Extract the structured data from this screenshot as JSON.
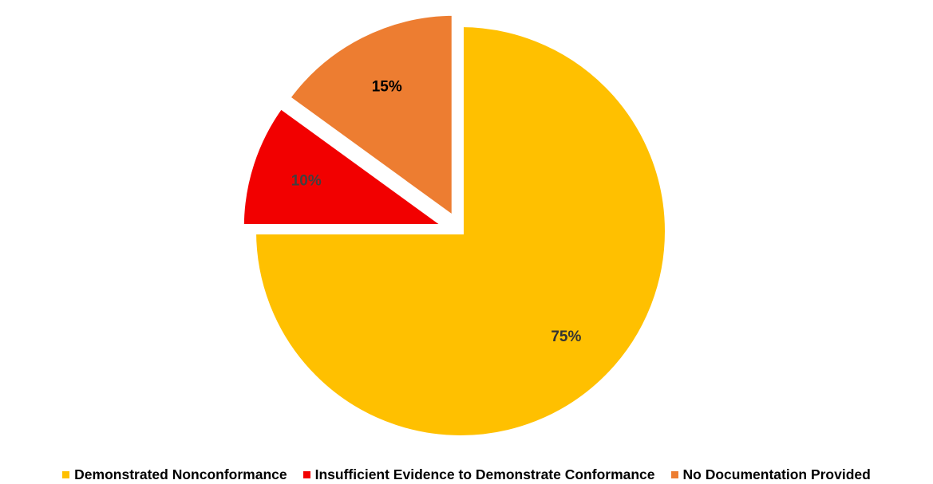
{
  "chart_data": {
    "type": "pie",
    "title": "",
    "slices": [
      {
        "label": "Demonstrated Nonconformance",
        "value": 75,
        "display": "75%",
        "color": "#FFC000",
        "label_color": "#333333",
        "exploded": false
      },
      {
        "label": "Insufficient Evidence to Demonstrate Conformance",
        "value": 10,
        "display": "10%",
        "color": "#F20000",
        "label_color": "#404040",
        "exploded": true
      },
      {
        "label": "No Documentation Provided",
        "value": 15,
        "display": "15%",
        "color": "#ED7D31",
        "label_color": "#000000",
        "exploded": true
      }
    ],
    "legend_position": "bottom"
  }
}
